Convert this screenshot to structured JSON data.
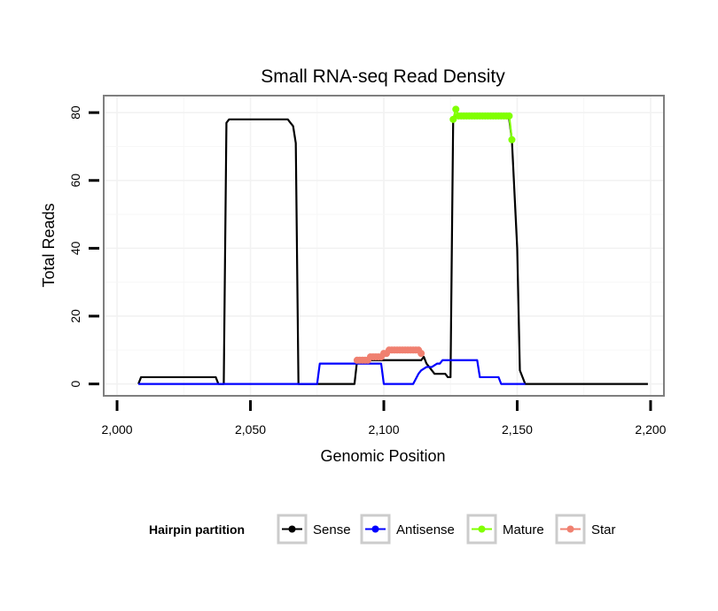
{
  "chart_data": {
    "type": "line",
    "title": "Small RNA-seq Read Density",
    "xlabel": "Genomic Position",
    "ylabel": "Total Reads",
    "xlim": [
      1995,
      2205
    ],
    "ylim": [
      -3.5,
      85
    ],
    "x_ticks": [
      2000,
      2050,
      2100,
      2150,
      2200
    ],
    "x_tick_labels": [
      "2,000",
      "2,050",
      "2,100",
      "2,150",
      "2,200"
    ],
    "y_ticks": [
      0,
      20,
      40,
      60,
      80
    ],
    "y_tick_labels": [
      "0",
      "20",
      "40",
      "60",
      "80"
    ],
    "grid": true,
    "legend": {
      "title": "Hairpin partition",
      "position": "bottom",
      "entries": [
        "Sense",
        "Antisense",
        "Mature",
        "Star"
      ]
    },
    "series": [
      {
        "name": "Sense",
        "color": "#000000",
        "markers": false,
        "points": [
          [
            2008,
            0
          ],
          [
            2009,
            2
          ],
          [
            2037,
            2
          ],
          [
            2038,
            0
          ],
          [
            2040,
            0
          ],
          [
            2041,
            77
          ],
          [
            2042,
            78
          ],
          [
            2064,
            78
          ],
          [
            2065,
            77
          ],
          [
            2066,
            76
          ],
          [
            2067,
            71
          ],
          [
            2068,
            0
          ],
          [
            2089,
            0
          ],
          [
            2090,
            7
          ],
          [
            2114,
            7
          ],
          [
            2115,
            8
          ],
          [
            2116,
            6
          ],
          [
            2119,
            3
          ],
          [
            2123,
            3
          ],
          [
            2124,
            2
          ],
          [
            2125,
            2
          ],
          [
            2126,
            78
          ],
          [
            2127,
            79
          ],
          [
            2146,
            79
          ],
          [
            2147,
            78
          ],
          [
            2148,
            72
          ],
          [
            2150,
            40
          ],
          [
            2151,
            4
          ],
          [
            2153,
            0
          ],
          [
            2199,
            0
          ]
        ]
      },
      {
        "name": "Antisense",
        "color": "#0000ff",
        "markers": false,
        "points": [
          [
            2008,
            0
          ],
          [
            2075,
            0
          ],
          [
            2076,
            6
          ],
          [
            2099,
            6
          ],
          [
            2100,
            0
          ],
          [
            2111,
            0
          ],
          [
            2113,
            3
          ],
          [
            2114,
            4
          ],
          [
            2116,
            5
          ],
          [
            2118,
            5
          ],
          [
            2120,
            6
          ],
          [
            2121,
            6
          ],
          [
            2122,
            7
          ],
          [
            2135,
            7
          ],
          [
            2136,
            2
          ],
          [
            2143,
            2
          ],
          [
            2144,
            0
          ],
          [
            2153,
            0
          ]
        ]
      },
      {
        "name": "Mature",
        "color": "#80ff00",
        "markers": true,
        "points": [
          [
            2126,
            78
          ],
          [
            2127,
            81
          ],
          [
            2128,
            79
          ],
          [
            2129,
            79
          ],
          [
            2130,
            79
          ],
          [
            2131,
            79
          ],
          [
            2132,
            79
          ],
          [
            2133,
            79
          ],
          [
            2134,
            79
          ],
          [
            2135,
            79
          ],
          [
            2136,
            79
          ],
          [
            2137,
            79
          ],
          [
            2138,
            79
          ],
          [
            2139,
            79
          ],
          [
            2140,
            79
          ],
          [
            2141,
            79
          ],
          [
            2142,
            79
          ],
          [
            2143,
            79
          ],
          [
            2144,
            79
          ],
          [
            2145,
            79
          ],
          [
            2146,
            79
          ],
          [
            2147,
            79
          ],
          [
            2148,
            72
          ]
        ]
      },
      {
        "name": "Star",
        "color": "#f08070",
        "markers": true,
        "points": [
          [
            2090,
            7
          ],
          [
            2091,
            7
          ],
          [
            2092,
            7
          ],
          [
            2093,
            7
          ],
          [
            2094,
            7
          ],
          [
            2095,
            8
          ],
          [
            2096,
            8
          ],
          [
            2097,
            8
          ],
          [
            2098,
            8
          ],
          [
            2099,
            8
          ],
          [
            2100,
            9
          ],
          [
            2101,
            9
          ],
          [
            2102,
            10
          ],
          [
            2103,
            10
          ],
          [
            2104,
            10
          ],
          [
            2105,
            10
          ],
          [
            2106,
            10
          ],
          [
            2107,
            10
          ],
          [
            2108,
            10
          ],
          [
            2109,
            10
          ],
          [
            2110,
            10
          ],
          [
            2111,
            10
          ],
          [
            2112,
            10
          ],
          [
            2113,
            10
          ],
          [
            2114,
            9
          ]
        ]
      }
    ]
  }
}
